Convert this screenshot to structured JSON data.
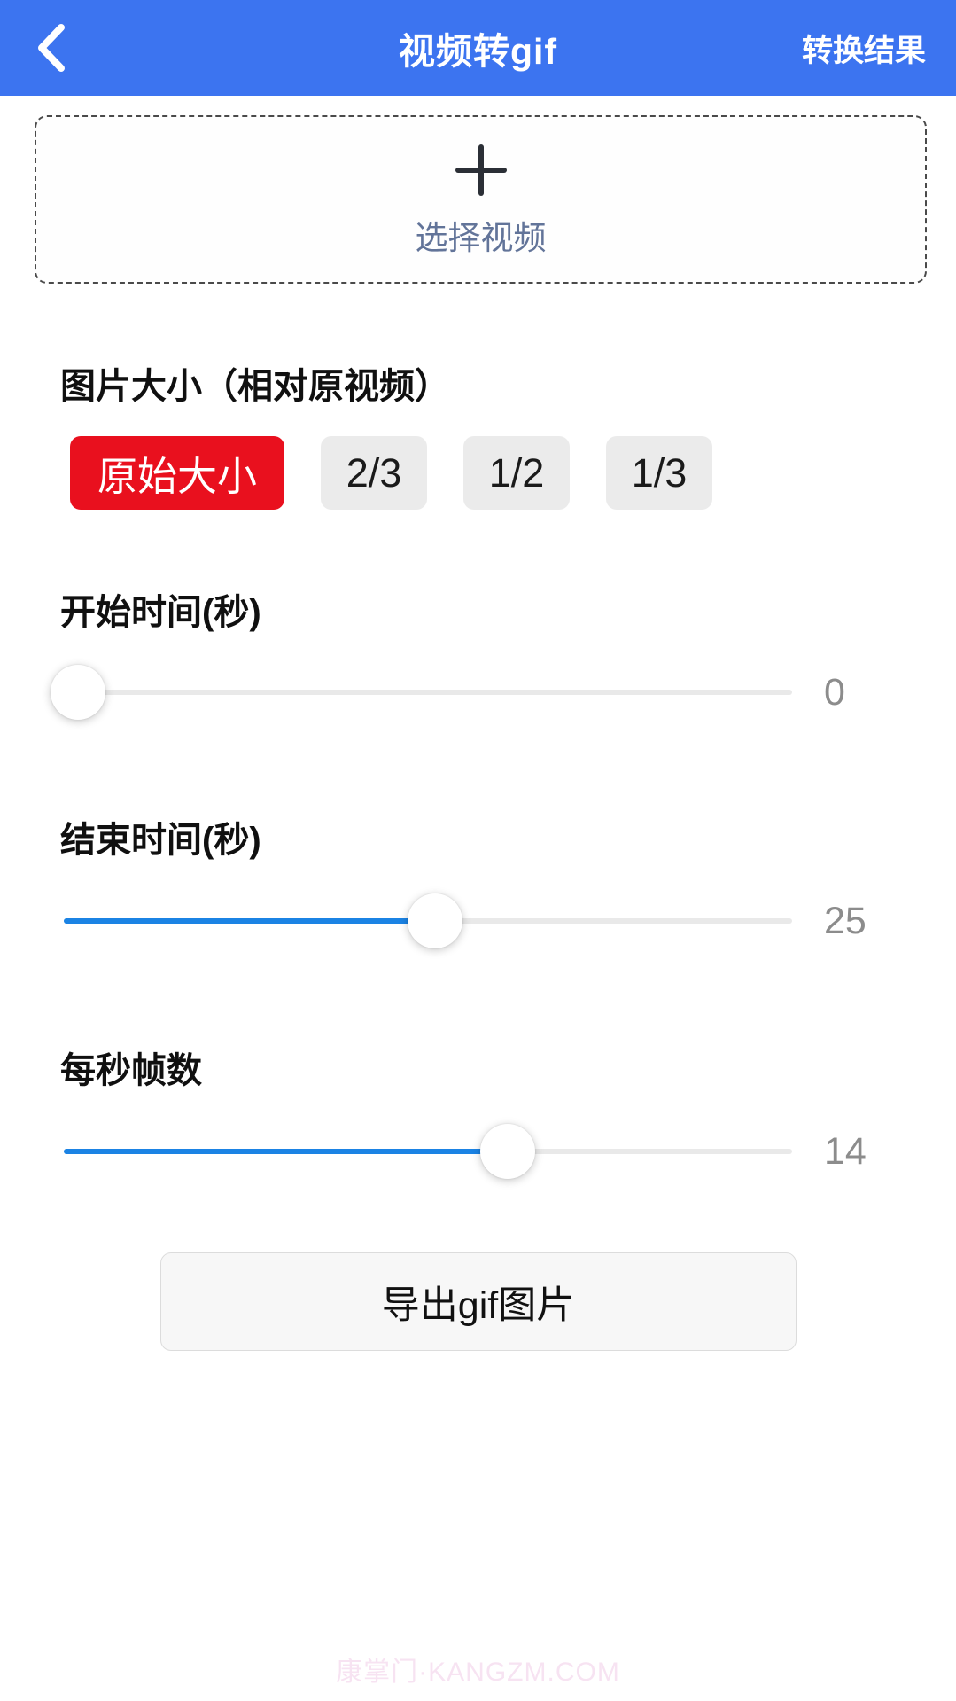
{
  "header": {
    "title": "视频转gif",
    "back_icon": "chevron-left",
    "action_label": "转换结果"
  },
  "picker": {
    "plus_icon": "+",
    "label": "选择视频"
  },
  "size_section": {
    "label": "图片大小（相对原视频）",
    "options": [
      {
        "label": "原始大小",
        "selected": true
      },
      {
        "label": "2/3",
        "selected": false
      },
      {
        "label": "1/2",
        "selected": false
      },
      {
        "label": "1/3",
        "selected": false
      }
    ],
    "selected_color": "#e9101e",
    "unselected_color": "#ebebeb"
  },
  "sliders": [
    {
      "id": "start-time",
      "label": "开始时间(秒)",
      "value": "0",
      "percent": 2
    },
    {
      "id": "end-time",
      "label": "结束时间(秒)",
      "value": "25",
      "percent": 51
    },
    {
      "id": "fps",
      "label": "每秒帧数",
      "value": "14",
      "percent": 61
    }
  ],
  "export_button": {
    "label": "导出gif图片"
  },
  "watermark": "康掌门·KANGZM.COM",
  "colors": {
    "header_bg": "#3c74f0",
    "slider_fill": "#1b83e4",
    "selected_red": "#e9101e",
    "value_text": "#8c8c8c",
    "picker_text": "#627499"
  }
}
